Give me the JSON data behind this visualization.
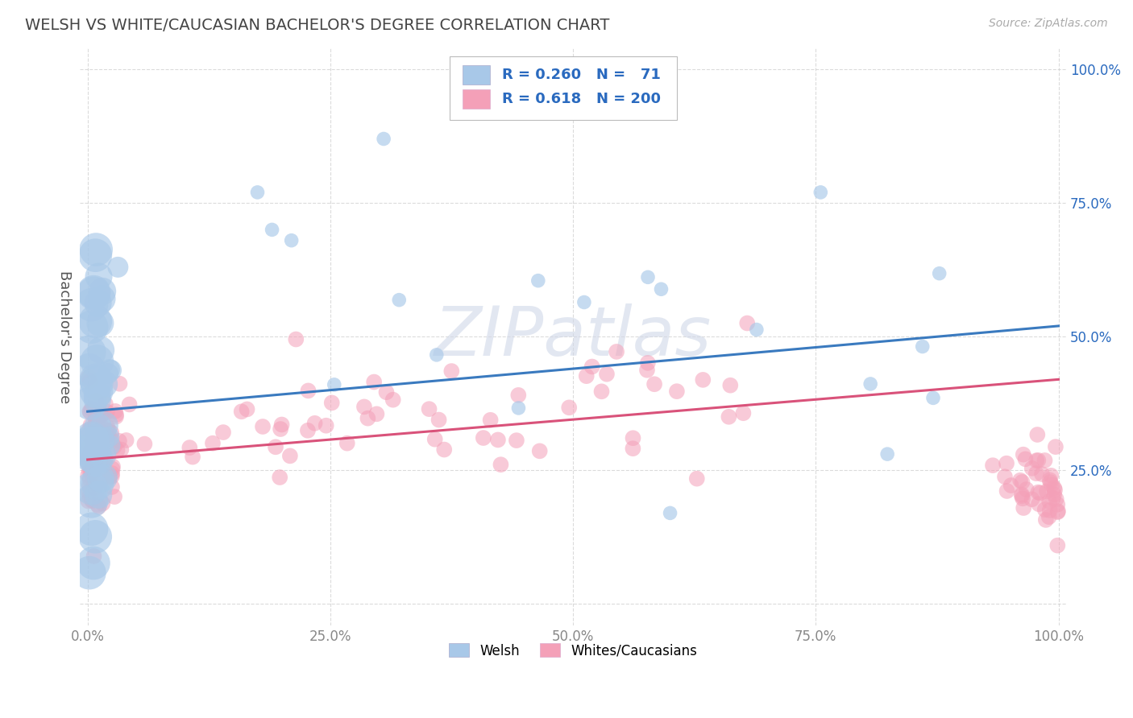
{
  "title": "WELSH VS WHITE/CAUCASIAN BACHELOR'S DEGREE CORRELATION CHART",
  "source": "Source: ZipAtlas.com",
  "ylabel": "Bachelor's Degree",
  "welsh_R": 0.26,
  "welsh_N": 71,
  "white_R": 0.618,
  "white_N": 200,
  "welsh_color": "#a8c8e8",
  "white_color": "#f4a0b8",
  "welsh_line_color": "#3a7abf",
  "white_line_color": "#d9527a",
  "background_color": "#ffffff",
  "grid_color": "#cccccc",
  "title_color": "#444444",
  "legend_text_color": "#2a6abf",
  "watermark_color": "#d0d8e8",
  "xticks": [
    0.0,
    0.25,
    0.5,
    0.75,
    1.0
  ],
  "yticks": [
    0.0,
    0.25,
    0.5,
    0.75,
    1.0
  ],
  "xticklabels": [
    "0.0%",
    "25.0%",
    "50.0%",
    "75.0%",
    "100.0%"
  ],
  "yticklabels": [
    "",
    "25.0%",
    "50.0%",
    "75.0%",
    "100.0%"
  ]
}
